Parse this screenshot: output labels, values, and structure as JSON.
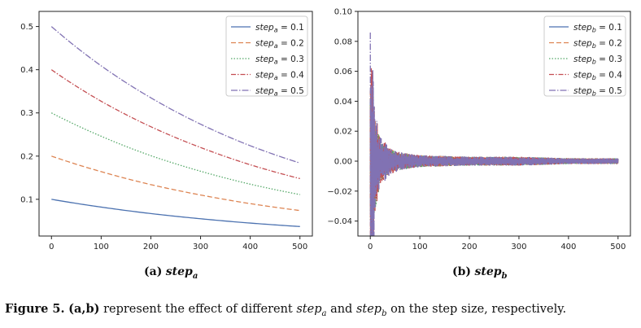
{
  "figure": {
    "caption": {
      "number": "Figure 5.",
      "panels": "(a,b)",
      "text_1": " represent the effect of different ",
      "var_a": "step",
      "sub_a": "a",
      "text_2": " and ",
      "var_b": "step",
      "sub_b": "b",
      "text_3": " on the step size, respectively."
    },
    "subcaptions": [
      {
        "label": "(a)",
        "var": "step",
        "sub": "a"
      },
      {
        "label": "(b)",
        "var": "step",
        "sub": "b"
      }
    ]
  },
  "chart_data": [
    {
      "type": "line",
      "title": "",
      "xlabel": "",
      "ylabel": "",
      "xlim": [
        -25,
        525
      ],
      "ylim": [
        0.015,
        0.535
      ],
      "x_ticks": [
        0,
        100,
        200,
        300,
        400,
        500
      ],
      "x_tick_labels": [
        "0",
        "100",
        "200",
        "300",
        "400",
        "500"
      ],
      "y_ticks": [
        0.1,
        0.2,
        0.3,
        0.4,
        0.5
      ],
      "y_tick_labels": [
        "0.1",
        "0.2",
        "0.3",
        "0.4",
        "0.5"
      ],
      "grid": false,
      "legend_position": "top-right",
      "legend_var": "step",
      "legend_sub": "a",
      "x": [
        0,
        100,
        200,
        300,
        400,
        500
      ],
      "series": [
        {
          "name": "step_a = 0.1",
          "legend_value": " = 0.1",
          "color": "#4c72b0",
          "dash": "",
          "values": [
            0.1,
            0.082,
            0.067,
            0.055,
            0.045,
            0.037
          ]
        },
        {
          "name": "step_a = 0.2",
          "legend_value": " = 0.2",
          "color": "#dd8452",
          "dash": "6,3",
          "values": [
            0.2,
            0.164,
            0.134,
            0.11,
            0.09,
            0.074
          ]
        },
        {
          "name": "step_a = 0.3",
          "legend_value": " = 0.3",
          "color": "#55a868",
          "dash": "1.5,2",
          "values": [
            0.3,
            0.246,
            0.201,
            0.165,
            0.135,
            0.111
          ]
        },
        {
          "name": "step_a = 0.4",
          "legend_value": " = 0.4",
          "color": "#c44e52",
          "dash": "6,2,1.5,2",
          "values": [
            0.4,
            0.327,
            0.268,
            0.22,
            0.18,
            0.148
          ]
        },
        {
          "name": "step_a = 0.5",
          "legend_value": " = 0.5",
          "color": "#8172b3",
          "dash": "8,2,1.5,2",
          "values": [
            0.5,
            0.409,
            0.335,
            0.274,
            0.224,
            0.184
          ]
        }
      ]
    },
    {
      "type": "line",
      "title": "",
      "xlabel": "",
      "ylabel": "",
      "xlim": [
        -25,
        525
      ],
      "ylim": [
        -0.05,
        0.1
      ],
      "x_ticks": [
        0,
        100,
        200,
        300,
        400,
        500
      ],
      "x_tick_labels": [
        "0",
        "100",
        "200",
        "300",
        "400",
        "500"
      ],
      "y_ticks": [
        -0.04,
        -0.02,
        0.0,
        0.02,
        0.04,
        0.06,
        0.08,
        0.1
      ],
      "y_tick_labels": [
        "−0.04",
        "−0.02",
        "0.00",
        "0.02",
        "0.04",
        "0.06",
        "0.08",
        "0.10"
      ],
      "grid": false,
      "legend_position": "top-right",
      "legend_var": "step",
      "legend_sub": "b",
      "envelope_note_x": [
        0,
        5,
        10,
        20,
        40,
        60,
        100,
        200,
        300,
        400,
        500
      ],
      "series": [
        {
          "name": "step_b = 0.1",
          "legend_value": " = 0.1",
          "color": "#4c72b0",
          "dash": "",
          "amplitude_x": [
            0,
            5,
            10,
            20,
            40,
            60,
            100,
            200,
            300,
            400,
            500
          ],
          "amplitude": [
            0.05,
            0.04,
            0.025,
            0.012,
            0.007,
            0.005,
            0.004,
            0.003,
            0.003,
            0.002,
            0.002
          ]
        },
        {
          "name": "step_b = 0.2",
          "legend_value": " = 0.2",
          "color": "#dd8452",
          "dash": "6,3",
          "amplitude_x": [
            0,
            5,
            10,
            20,
            40,
            60,
            100,
            200,
            300,
            400,
            500
          ],
          "amplitude": [
            0.07,
            0.05,
            0.03,
            0.014,
            0.008,
            0.006,
            0.004,
            0.003,
            0.003,
            0.002,
            0.002
          ]
        },
        {
          "name": "step_b = 0.3",
          "legend_value": " = 0.3",
          "color": "#55a868",
          "dash": "1.5,2",
          "amplitude_x": [
            0,
            5,
            10,
            20,
            40,
            60,
            100,
            200,
            300,
            400,
            500
          ],
          "amplitude": [
            0.08,
            0.055,
            0.032,
            0.015,
            0.008,
            0.006,
            0.004,
            0.003,
            0.003,
            0.002,
            0.002
          ]
        },
        {
          "name": "step_b = 0.4",
          "legend_value": " = 0.4",
          "color": "#c44e52",
          "dash": "6,2,1.5,2",
          "amplitude_x": [
            0,
            5,
            10,
            20,
            40,
            60,
            100,
            200,
            300,
            400,
            500
          ],
          "amplitude": [
            0.095,
            0.06,
            0.034,
            0.016,
            0.009,
            0.006,
            0.004,
            0.003,
            0.003,
            0.002,
            0.002
          ]
        },
        {
          "name": "step_b = 0.5",
          "legend_value": " = 0.5",
          "color": "#8172b3",
          "dash": "8,2,1.5,2",
          "amplitude_x": [
            0,
            5,
            10,
            20,
            40,
            60,
            100,
            200,
            300,
            400,
            500
          ],
          "amplitude": [
            0.1,
            0.065,
            0.036,
            0.017,
            0.009,
            0.006,
            0.004,
            0.003,
            0.003,
            0.002,
            0.002
          ]
        }
      ]
    }
  ]
}
